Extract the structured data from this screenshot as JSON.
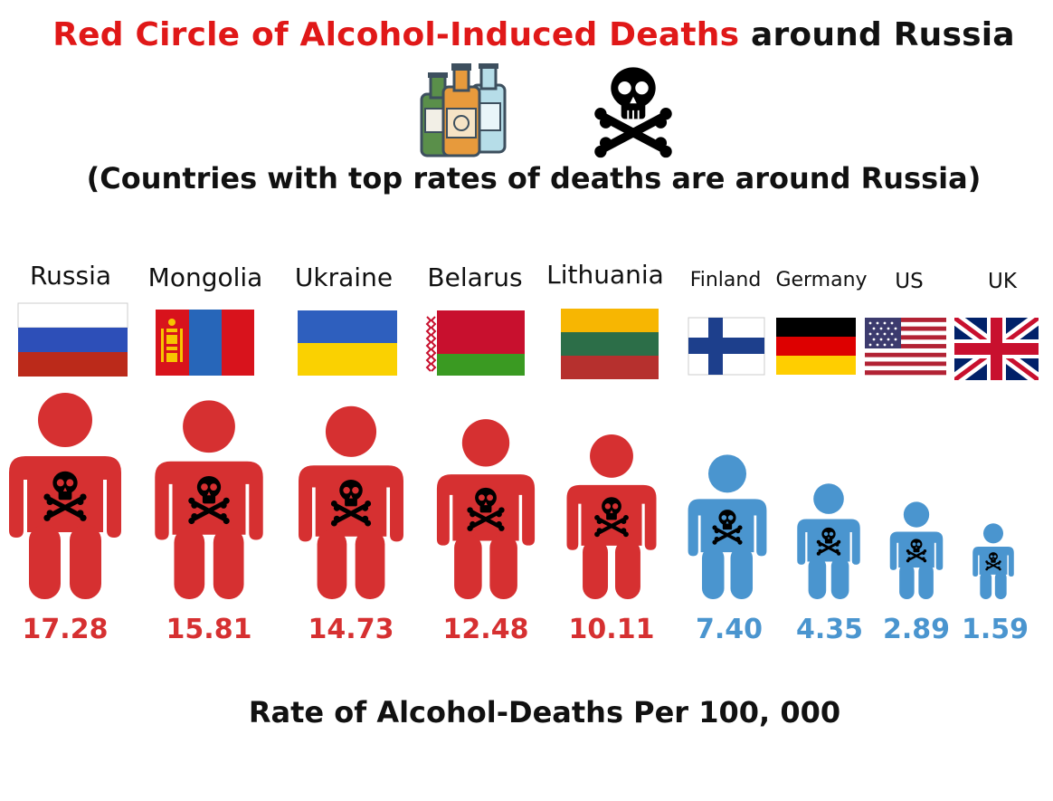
{
  "title": {
    "red_part": "Red Circle of Alcohol-Induced Deaths",
    "black_part": "around Russia"
  },
  "subtitle": "(Countries with top rates of deaths are around Russia)",
  "footer": "Rate of Alcohol-Deaths Per 100, 000",
  "icons": [
    "bottles-icon",
    "skull-crossbones-icon"
  ],
  "colors": {
    "high": "#d63031",
    "low": "#4a95cf",
    "title_red": "#e01818"
  },
  "chart_data": {
    "type": "bar",
    "categories": [
      "Russia",
      "Mongolia",
      "Ukraine",
      "Belarus",
      "Lithuania",
      "Finland",
      "Germany",
      "US",
      "UK"
    ],
    "values": [
      17.28,
      15.81,
      14.73,
      12.48,
      10.11,
      7.4,
      4.35,
      2.89,
      1.59
    ],
    "labels": [
      "17.28",
      "15.81",
      "14.73",
      "12.48",
      "10.11",
      "7.40",
      "4.35",
      "2.89",
      "1.59"
    ],
    "series_colors": [
      "#d63031",
      "#d63031",
      "#d63031",
      "#d63031",
      "#d63031",
      "#4a95cf",
      "#4a95cf",
      "#4a95cf",
      "#4a95cf"
    ],
    "xlabel": "Rate of Alcohol-Deaths Per 100, 000"
  }
}
